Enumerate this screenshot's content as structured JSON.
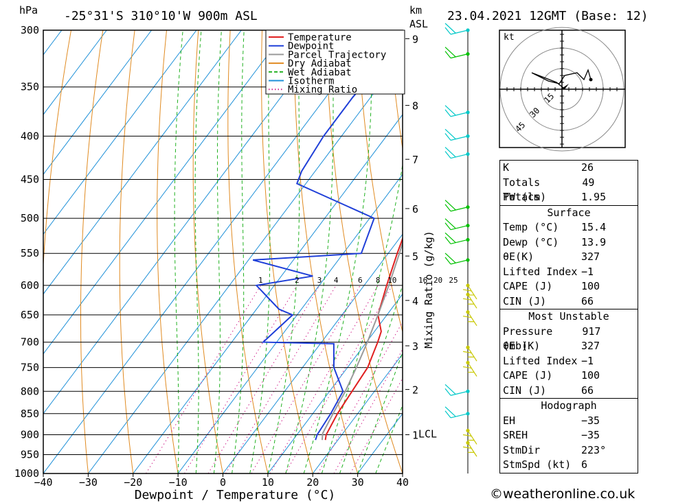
{
  "header": {
    "left_unit": "hPa",
    "location": "-25°31'S 310°10'W 900m ASL",
    "km_unit": "km",
    "asl_unit": "ASL",
    "datetime": "23.04.2021 12GMT (Base: 12)"
  },
  "chart_data": {
    "type": "line",
    "chart_kind": "skew-T log-P",
    "xlabel": "Dewpoint / Temperature (°C)",
    "ylabel_left": "hPa",
    "ylabel_right": "Mixing Ratio (g/kg)",
    "xlim": [
      -40,
      40
    ],
    "ylim": [
      1000,
      300
    ],
    "x_ticks": [
      "−40",
      "−30",
      "−20",
      "−10",
      "0",
      "10",
      "20",
      "30",
      "40"
    ],
    "pressure_levels": [
      300,
      350,
      400,
      450,
      500,
      550,
      600,
      650,
      700,
      750,
      800,
      850,
      900,
      950,
      1000
    ],
    "km_ticks": [
      {
        "label": "9",
        "p": 307
      },
      {
        "label": "8",
        "p": 368
      },
      {
        "label": "7",
        "p": 426
      },
      {
        "label": "6",
        "p": 487
      },
      {
        "label": "5",
        "p": 554
      },
      {
        "label": "4",
        "p": 625
      },
      {
        "label": "3",
        "p": 707
      },
      {
        "label": "2",
        "p": 796
      },
      {
        "label": "1",
        "p": 900
      }
    ],
    "lcl": {
      "label": "LCL",
      "p": 897
    },
    "mixing_ratio_labels": [
      "1",
      "2",
      "3",
      "4",
      "6",
      "8",
      "10",
      "16",
      "20",
      "25"
    ],
    "legend": [
      {
        "label": "Temperature",
        "color": "#e02020",
        "style": "solid"
      },
      {
        "label": "Dewpoint",
        "color": "#1f3fd8",
        "style": "solid"
      },
      {
        "label": "Parcel Trajectory",
        "color": "#9a9a9a",
        "style": "solid"
      },
      {
        "label": "Dry Adiabat",
        "color": "#e08a20",
        "style": "solid"
      },
      {
        "label": "Wet Adiabat",
        "color": "#1fb01f",
        "style": "dash"
      },
      {
        "label": "Isotherm",
        "color": "#1e90d8",
        "style": "solid"
      },
      {
        "label": "Mixing Ratio",
        "color": "#d0208a",
        "style": "dot"
      }
    ],
    "series": [
      {
        "name": "Temperature",
        "points": [
          [
            300,
            -25
          ],
          [
            340,
            -21
          ],
          [
            400,
            -13
          ],
          [
            450,
            -5.5
          ],
          [
            500,
            -1
          ],
          [
            550,
            2
          ],
          [
            600,
            5
          ],
          [
            650,
            8
          ],
          [
            680,
            11.5
          ],
          [
            700,
            12.5
          ],
          [
            750,
            14.5
          ],
          [
            800,
            15
          ],
          [
            850,
            15.5
          ],
          [
            900,
            16.5
          ],
          [
            913,
            17.2
          ]
        ]
      },
      {
        "name": "Dewpoint",
        "points": [
          [
            300,
            -35
          ],
          [
            320,
            -33
          ],
          [
            360,
            -34
          ],
          [
            400,
            -34
          ],
          [
            440,
            -33
          ],
          [
            455,
            -32
          ],
          [
            500,
            -9
          ],
          [
            550,
            -6
          ],
          [
            560,
            -29
          ],
          [
            585,
            -13
          ],
          [
            600,
            -24
          ],
          [
            640,
            -15
          ],
          [
            650,
            -11
          ],
          [
            700,
            -13
          ],
          [
            703,
            3
          ],
          [
            750,
            7
          ],
          [
            800,
            13
          ],
          [
            850,
            14
          ],
          [
            900,
            14.5
          ],
          [
            913,
            15
          ]
        ]
      },
      {
        "name": "Parcel Trajectory",
        "points": [
          [
            913,
            16.5
          ],
          [
            897,
            15.5
          ],
          [
            850,
            14.5
          ],
          [
            800,
            13.5
          ],
          [
            750,
            12
          ],
          [
            700,
            10.2
          ],
          [
            650,
            8
          ],
          [
            600,
            5.5
          ],
          [
            550,
            2.5
          ],
          [
            500,
            -1
          ],
          [
            450,
            -6
          ],
          [
            400,
            -12.5
          ],
          [
            350,
            -19.5
          ],
          [
            300,
            -27
          ]
        ]
      }
    ],
    "wind_barbs": [
      {
        "p": 300,
        "color": "#00c8c8"
      },
      {
        "p": 320,
        "color": "#00c000"
      },
      {
        "p": 375,
        "color": "#00c8c8"
      },
      {
        "p": 400,
        "color": "#00c8c8"
      },
      {
        "p": 420,
        "color": "#00c8c8"
      },
      {
        "p": 485,
        "color": "#00c000"
      },
      {
        "p": 510,
        "color": "#00c000"
      },
      {
        "p": 530,
        "color": "#00c000"
      },
      {
        "p": 560,
        "color": "#00c000"
      },
      {
        "p": 600,
        "color": "#c8c800"
      },
      {
        "p": 615,
        "color": "#c8c800"
      },
      {
        "p": 645,
        "color": "#c8c800"
      },
      {
        "p": 710,
        "color": "#c8c800"
      },
      {
        "p": 740,
        "color": "#c8c800"
      },
      {
        "p": 800,
        "color": "#00c8c8"
      },
      {
        "p": 850,
        "color": "#00c8c8"
      },
      {
        "p": 890,
        "color": "#c8c800"
      },
      {
        "p": 920,
        "color": "#c8c800"
      }
    ]
  },
  "hodograph": {
    "unit": "kt",
    "ring_labels": [
      "15",
      "30",
      "45"
    ]
  },
  "indices": {
    "rows": [
      {
        "label": "K",
        "value": "26"
      },
      {
        "label": "Totals Totals",
        "value": "49"
      },
      {
        "label": "PW (cm)",
        "value": "1.95"
      }
    ]
  },
  "surface": {
    "title": "Surface",
    "rows": [
      {
        "label": "Temp (°C)",
        "value": "15.4"
      },
      {
        "label": "Dewp (°C)",
        "value": "13.9"
      },
      {
        "label": "θE(K)",
        "value": "327"
      },
      {
        "label": "Lifted Index",
        "value": "−1"
      },
      {
        "label": "CAPE (J)",
        "value": "100"
      },
      {
        "label": "CIN (J)",
        "value": "66"
      }
    ]
  },
  "most_unstable": {
    "title": "Most Unstable",
    "rows": [
      {
        "label": "Pressure (mb)",
        "value": "917"
      },
      {
        "label": "θE (K)",
        "value": "327"
      },
      {
        "label": "Lifted Index",
        "value": "−1"
      },
      {
        "label": "CAPE (J)",
        "value": "100"
      },
      {
        "label": "CIN (J)",
        "value": "66"
      }
    ]
  },
  "hodograph_table": {
    "title": "Hodograph",
    "rows": [
      {
        "label": "EH",
        "value": "−35"
      },
      {
        "label": "SREH",
        "value": "−35"
      },
      {
        "label": "StmDir",
        "value": "223°"
      },
      {
        "label": "StmSpd (kt)",
        "value": "6"
      }
    ]
  },
  "footer": "©weatheronline.co.uk"
}
